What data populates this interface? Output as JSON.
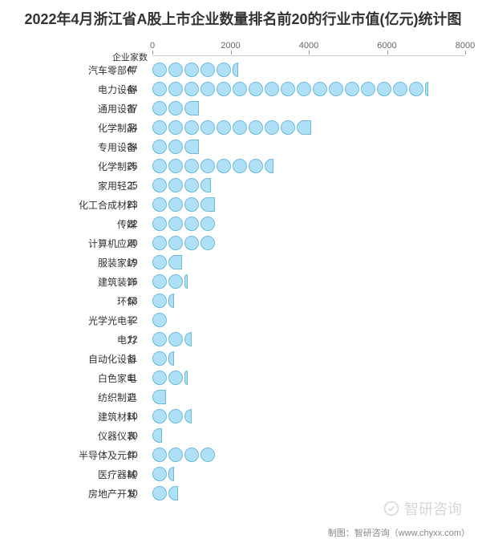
{
  "chart": {
    "title": "2022年4月浙江省A股上市企业数量排名前20的行业市值(亿元)统计图",
    "type": "dot-bar-horizontal",
    "background_color": "#ffffff",
    "dot_color": "#aee1f5",
    "dot_border_color": "#6db9d6",
    "dot_diameter": 18,
    "count_header": "企业家数",
    "x_axis": {
      "min": 0,
      "max": 8000,
      "ticks": [
        0,
        2000,
        4000,
        6000,
        8000
      ],
      "tick_fontsize": 11,
      "tick_color": "#666666",
      "axis_color": "#cccccc"
    },
    "categories": [
      {
        "label": "汽车零部件",
        "count": 47,
        "value": 2200
      },
      {
        "label": "电力设备",
        "count": 44,
        "value": 7050
      },
      {
        "label": "通用设备",
        "count": 37,
        "value": 1200
      },
      {
        "label": "化学制品",
        "count": 34,
        "value": 4100
      },
      {
        "label": "专用设备",
        "count": 34,
        "value": 1200
      },
      {
        "label": "化学制药",
        "count": 26,
        "value": 3100
      },
      {
        "label": "家用轻工",
        "count": 25,
        "value": 1500
      },
      {
        "label": "化工合成材料",
        "count": 23,
        "value": 1600
      },
      {
        "label": "传媒",
        "count": 22,
        "value": 1700
      },
      {
        "label": "计算机应用",
        "count": 20,
        "value": 1700
      },
      {
        "label": "服装家纺",
        "count": 19,
        "value": 750
      },
      {
        "label": "建筑装饰",
        "count": 16,
        "value": 900
      },
      {
        "label": "环保",
        "count": 13,
        "value": 550
      },
      {
        "label": "光学光电子",
        "count": 12,
        "value": 450
      },
      {
        "label": "电力",
        "count": 12,
        "value": 1000
      },
      {
        "label": "自动化设备",
        "count": 11,
        "value": 550
      },
      {
        "label": "白色家电",
        "count": 11,
        "value": 900
      },
      {
        "label": "纺织制造",
        "count": 11,
        "value": 350
      },
      {
        "label": "建筑材料",
        "count": 10,
        "value": 1000
      },
      {
        "label": "仪器仪表",
        "count": 10,
        "value": 250
      },
      {
        "label": "半导体及元件",
        "count": 10,
        "value": 1700
      },
      {
        "label": "医疗器械",
        "count": 10,
        "value": 550
      },
      {
        "label": "房地产开发",
        "count": 10,
        "value": 650
      }
    ],
    "label_fontsize": 12,
    "label_color": "#333333",
    "title_fontsize": 18,
    "title_color": "#333333"
  },
  "footer": {
    "source": "制图：智研咨询（www.chyxx.com）",
    "watermark": "智研咨询"
  }
}
